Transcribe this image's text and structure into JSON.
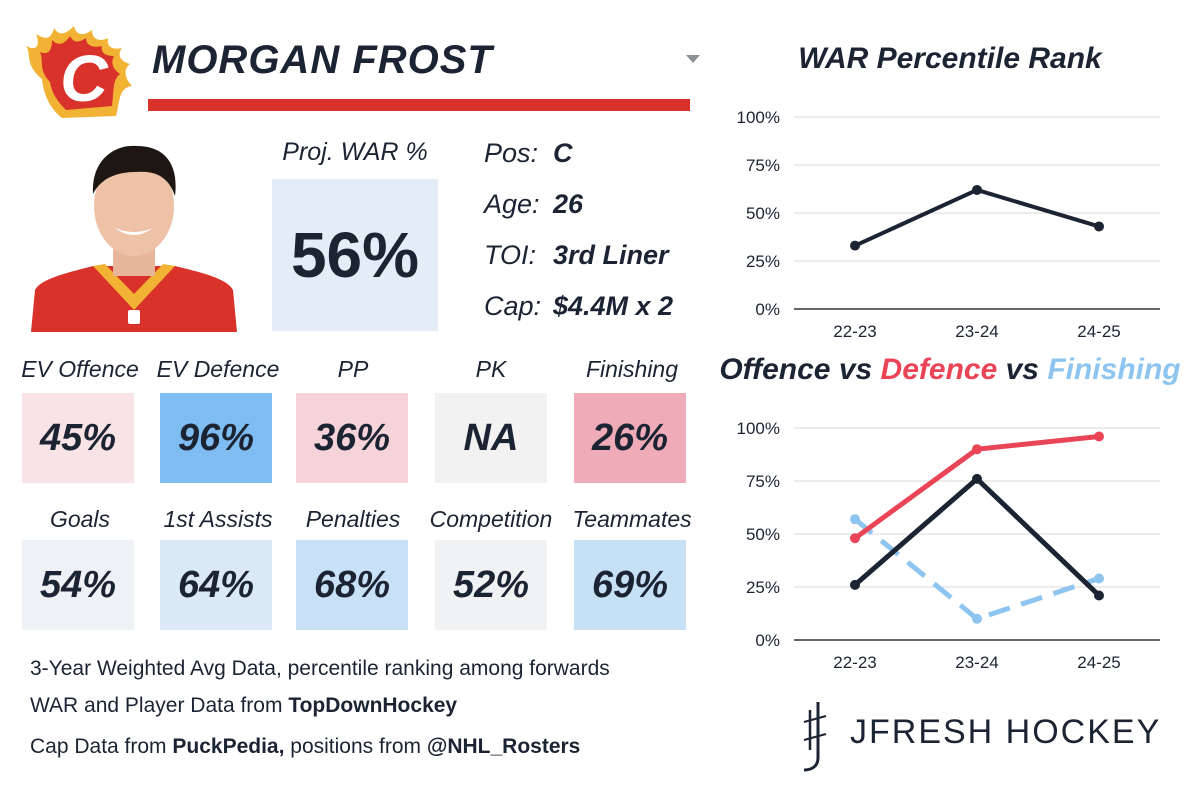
{
  "player": {
    "name": "MORGAN FROST",
    "team_logo_letter": "C",
    "proj_war_label": "Proj. WAR %",
    "proj_war_value": "56%"
  },
  "info": [
    {
      "label": "Pos:",
      "value": "C"
    },
    {
      "label": "Age:",
      "value": "26"
    },
    {
      "label": "TOI:",
      "value": "3rd Liner"
    },
    {
      "label": "Cap:",
      "value": "$4.4M x 2"
    }
  ],
  "metrics_row1": [
    {
      "label": "EV Offence",
      "value": "45%",
      "color": "#f8e4e7"
    },
    {
      "label": "EV Defence",
      "value": "96%",
      "color": "#7fbcf2"
    },
    {
      "label": "PP",
      "value": "36%",
      "color": "#f6d2d9"
    },
    {
      "label": "PK",
      "value": "NA",
      "color": "#f2f2f3"
    },
    {
      "label": "Finishing",
      "value": "26%",
      "color": "#efabb7"
    }
  ],
  "metrics_row2": [
    {
      "label": "Goals",
      "value": "54%",
      "color": "#eef1f5"
    },
    {
      "label": "1st Assists",
      "value": "64%",
      "color": "#dbe8f5"
    },
    {
      "label": "Penalties",
      "value": "68%",
      "color": "#c8e1f6"
    },
    {
      "label": "Competition",
      "value": "52%",
      "color": "#f1f2f4"
    },
    {
      "label": "Teammates",
      "value": "69%",
      "color": "#c6e0f6"
    }
  ],
  "footer": {
    "line1": "3-Year Weighted Avg Data, percentile ranking among forwards",
    "line2_prefix": "WAR and Player Data from ",
    "line2_bold": "TopDownHockey",
    "line3_prefix": "Cap Data from ",
    "line3_bold": "PuckPedia,",
    "line3_mid": " positions from ",
    "line3_bold2": "@NHL_Rosters"
  },
  "brand": "JFRESH HOCKEY",
  "colors": {
    "navy": "#1c2433",
    "red": "#ea4457",
    "lightblue": "#8ec5f0",
    "team_red": "#d8322a"
  },
  "chart_data": [
    {
      "type": "line",
      "title": "WAR Percentile Rank",
      "categories": [
        "22-23",
        "23-24",
        "24-25"
      ],
      "series": [
        {
          "name": "WAR",
          "values": [
            33,
            62,
            43
          ],
          "color": "#1c2433",
          "dashed": false
        }
      ],
      "ylim": [
        0,
        100
      ],
      "yticks": [
        "0%",
        "25%",
        "50%",
        "75%",
        "100%"
      ],
      "grid": true
    },
    {
      "type": "line",
      "title_parts": [
        {
          "text": "Offence",
          "color": "#1c2433"
        },
        {
          "text": " vs ",
          "color": "#1c2433"
        },
        {
          "text": "Defence",
          "color": "#ea4457"
        },
        {
          "text": " vs ",
          "color": "#1c2433"
        },
        {
          "text": "Finishing",
          "color": "#8ec5f0"
        }
      ],
      "categories": [
        "22-23",
        "23-24",
        "24-25"
      ],
      "series": [
        {
          "name": "Finishing",
          "values": [
            57,
            10,
            29
          ],
          "color": "#8ec5f0",
          "dashed": true
        },
        {
          "name": "Defence",
          "values": [
            48,
            90,
            96
          ],
          "color": "#ea4457",
          "dashed": false
        },
        {
          "name": "Offence",
          "values": [
            26,
            76,
            21
          ],
          "color": "#1c2433",
          "dashed": false
        }
      ],
      "ylim": [
        0,
        100
      ],
      "yticks": [
        "0%",
        "25%",
        "50%",
        "75%",
        "100%"
      ],
      "grid": true
    }
  ]
}
